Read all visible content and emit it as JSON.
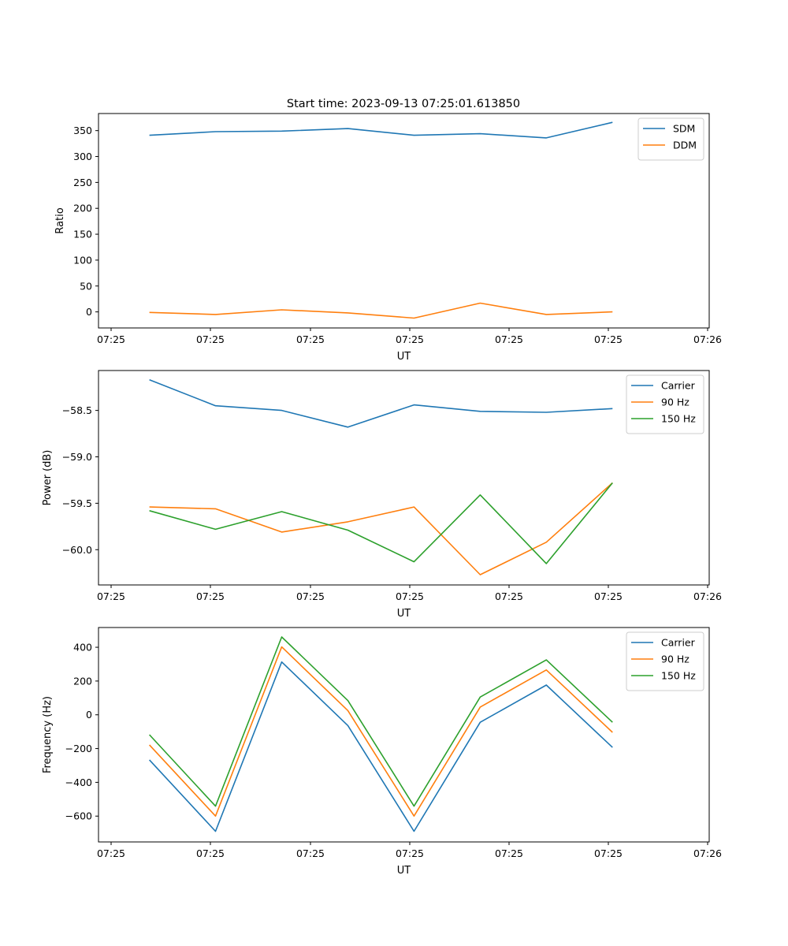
{
  "figure_title": "Start time: 2023-09-13 07:25:01.613850",
  "colors": {
    "blue": "#1f77b4",
    "orange": "#ff7f0e",
    "green": "#2ca02c"
  },
  "chart_data": [
    {
      "type": "line",
      "xlabel": "UT",
      "ylabel": "Ratio",
      "xticklabels": [
        "07:25",
        "07:25",
        "07:25",
        "07:25",
        "07:25",
        "07:25",
        "07:26"
      ],
      "xlim": [
        0,
        6
      ],
      "x": [
        0.5,
        1.15,
        1.8,
        2.45,
        3.1,
        3.75,
        4.4,
        5.05
      ],
      "ylim": [
        -31,
        383
      ],
      "yticks": [
        0,
        50,
        100,
        150,
        200,
        250,
        300,
        350
      ],
      "legend_position": "top-right",
      "series": [
        {
          "name": "SDM",
          "color": "#1f77b4",
          "values": [
            341,
            348,
            349,
            354,
            341,
            344,
            336,
            366
          ]
        },
        {
          "name": "DDM",
          "color": "#ff7f0e",
          "values": [
            -1,
            -5,
            4,
            -2,
            -12,
            17,
            -5,
            0
          ]
        }
      ]
    },
    {
      "type": "line",
      "xlabel": "UT",
      "ylabel": "Power (dB)",
      "xticklabels": [
        "07:25",
        "07:25",
        "07:25",
        "07:25",
        "07:25",
        "07:25",
        "07:26"
      ],
      "xlim": [
        0,
        6
      ],
      "x": [
        0.5,
        1.15,
        1.8,
        2.45,
        3.1,
        3.75,
        4.4,
        5.05
      ],
      "ylim": [
        -60.38,
        -58.07
      ],
      "yticks": [
        -60.0,
        -59.5,
        -59.0,
        -58.5
      ],
      "yticklabels": [
        "−60.0",
        "−59.5",
        "−59.0",
        "−58.5"
      ],
      "legend_position": "top-right",
      "series": [
        {
          "name": "Carrier",
          "color": "#1f77b4",
          "values": [
            -58.17,
            -58.45,
            -58.5,
            -58.68,
            -58.44,
            -58.51,
            -58.52,
            -58.48
          ]
        },
        {
          "name": "90 Hz",
          "color": "#ff7f0e",
          "values": [
            -59.54,
            -59.56,
            -59.81,
            -59.7,
            -59.54,
            -60.27,
            -59.92,
            -59.28
          ]
        },
        {
          "name": "150 Hz",
          "color": "#2ca02c",
          "values": [
            -59.58,
            -59.78,
            -59.59,
            -59.79,
            -60.13,
            -59.41,
            -60.15,
            -59.28
          ]
        }
      ]
    },
    {
      "type": "line",
      "xlabel": "UT",
      "ylabel": "Frequency (Hz)",
      "xticklabels": [
        "07:25",
        "07:25",
        "07:25",
        "07:25",
        "07:25",
        "07:25",
        "07:26"
      ],
      "xlim": [
        0,
        6
      ],
      "x": [
        0.5,
        1.15,
        1.8,
        2.45,
        3.1,
        3.75,
        4.4,
        5.05
      ],
      "ylim": [
        -753,
        517
      ],
      "yticks": [
        -600,
        -400,
        -200,
        0,
        200,
        400
      ],
      "yticklabels": [
        "−600",
        "−400",
        "−200",
        "0",
        "200",
        "400"
      ],
      "legend_position": "top-right",
      "series": [
        {
          "name": "Carrier",
          "color": "#1f77b4",
          "values": [
            -267,
            -690,
            313,
            -64,
            -690,
            -44,
            176,
            -193
          ]
        },
        {
          "name": "90 Hz",
          "color": "#ff7f0e",
          "values": [
            -178,
            -600,
            402,
            25,
            -600,
            46,
            266,
            -104
          ]
        },
        {
          "name": "150 Hz",
          "color": "#2ca02c",
          "values": [
            -118,
            -541,
            461,
            84,
            -541,
            105,
            325,
            -44
          ]
        }
      ]
    }
  ]
}
